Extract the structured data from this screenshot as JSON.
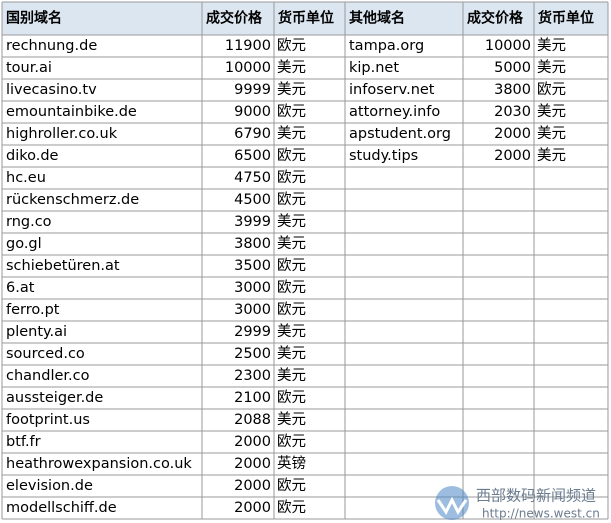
{
  "table": {
    "header": [
      "国别域名",
      "成交价格",
      "货币单位",
      "其他域名",
      "成交价格",
      "货币单位"
    ],
    "left_rows": [
      [
        "rechnung.de",
        11900,
        "欧元"
      ],
      [
        "tour.ai",
        10000,
        "美元"
      ],
      [
        "livecasino.tv",
        9999,
        "美元"
      ],
      [
        "emountainbike.de",
        9000,
        "欧元"
      ],
      [
        "highroller.co.uk",
        6790,
        "美元"
      ],
      [
        "diko.de",
        6500,
        "欧元"
      ],
      [
        "hc.eu",
        4750,
        "欧元"
      ],
      [
        "rückenschmerz.de",
        4500,
        "欧元"
      ],
      [
        "rng.co",
        3999,
        "美元"
      ],
      [
        "go.gl",
        3800,
        "美元"
      ],
      [
        "schiebetüren.at",
        3500,
        "欧元"
      ],
      [
        "6.at",
        3000,
        "欧元"
      ],
      [
        "ferro.pt",
        3000,
        "欧元"
      ],
      [
        "plenty.ai",
        2999,
        "美元"
      ],
      [
        "sourced.co",
        2500,
        "美元"
      ],
      [
        "chandler.co",
        2300,
        "美元"
      ],
      [
        "aussteiger.de",
        2100,
        "欧元"
      ],
      [
        "footprint.us",
        2088,
        "美元"
      ],
      [
        "btf.fr",
        2000,
        "欧元"
      ],
      [
        "heathrowexpansion.co.uk",
        2000,
        "英镑"
      ],
      [
        "elevision.de",
        2000,
        "欧元"
      ],
      [
        "modellschiff.de",
        2000,
        "欧元"
      ]
    ],
    "right_rows": [
      [
        "tampa.org",
        10000,
        "美元"
      ],
      [
        "kip.net",
        5000,
        "美元"
      ],
      [
        "infoserv.net",
        3800,
        "欧元"
      ],
      [
        "attorney.info",
        2030,
        "美元"
      ],
      [
        "apstudent.org",
        2000,
        "美元"
      ],
      [
        "study.tips",
        2000,
        "美元"
      ]
    ]
  },
  "watermark": {
    "title": "西部数码新闻频道",
    "url": "http://news.west.cn"
  }
}
